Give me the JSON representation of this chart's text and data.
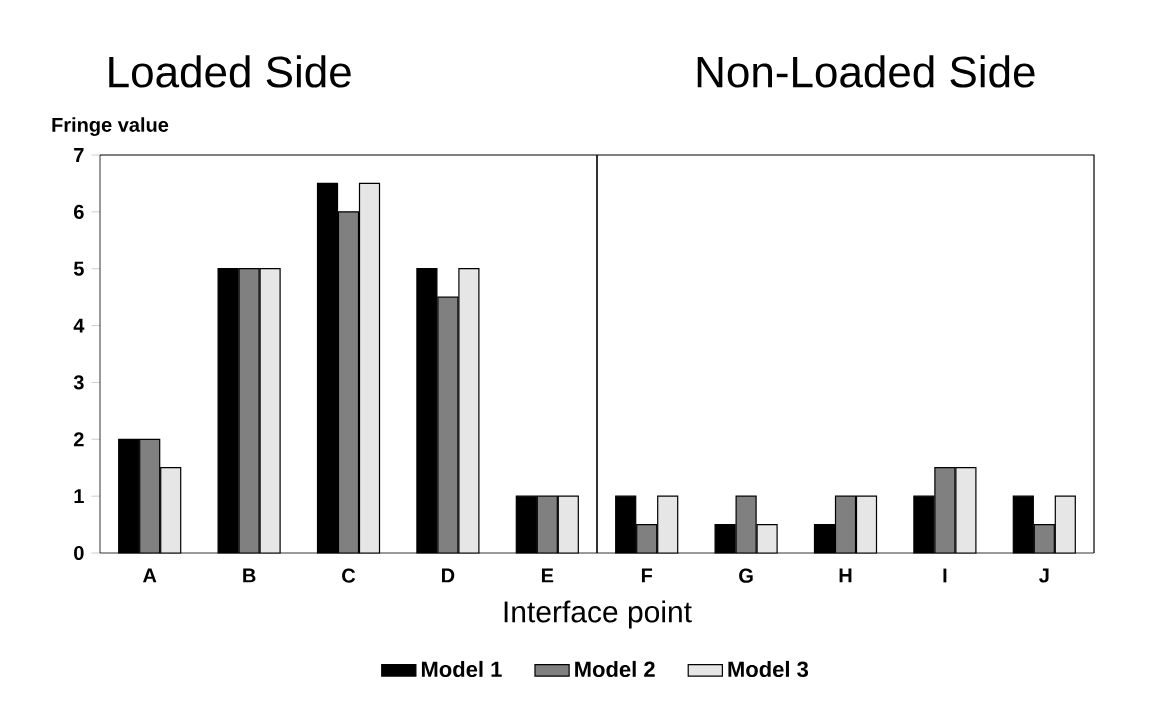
{
  "chart_data": {
    "type": "bar",
    "annotations": [
      "Loaded Side",
      "Non-Loaded Side"
    ],
    "xlabel": "Interface point",
    "ylabel": "Fringe value",
    "categories": [
      "A",
      "B",
      "C",
      "D",
      "E",
      "F",
      "G",
      "H",
      "I",
      "J"
    ],
    "series": [
      {
        "name": "Model 1",
        "color": "#000000",
        "values": [
          2,
          5,
          6.5,
          5,
          1,
          1,
          0.5,
          0.5,
          1,
          1
        ]
      },
      {
        "name": "Model 2",
        "color": "#808080",
        "values": [
          2,
          5,
          6,
          4.5,
          1,
          0.5,
          1,
          1,
          1.5,
          0.5
        ]
      },
      {
        "name": "Model 3",
        "color": "#e6e6e6",
        "values": [
          1.5,
          5,
          6.5,
          5,
          1,
          1,
          0.5,
          1,
          1.5,
          1
        ]
      }
    ],
    "ylim": [
      0,
      7
    ],
    "yticks": [
      0,
      1,
      2,
      3,
      4,
      5,
      6,
      7
    ],
    "legend": "bottom"
  }
}
